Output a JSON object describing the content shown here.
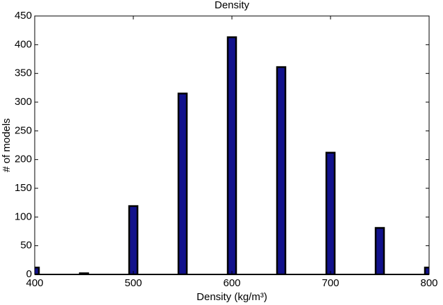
{
  "chart_data": {
    "type": "bar",
    "title": "Density",
    "xlabel": "Density (kg/m³)",
    "ylabel": "# of models",
    "x": [
      400,
      450,
      500,
      550,
      600,
      650,
      700,
      750,
      800
    ],
    "values": [
      12,
      2,
      119,
      315,
      413,
      361,
      212,
      81,
      12
    ],
    "color": "#12128c",
    "edgecolor": "#000000",
    "xlim": [
      400,
      800
    ],
    "xticks": [
      400,
      500,
      600,
      700,
      800
    ],
    "ylim": [
      0,
      450
    ],
    "yticks": [
      0,
      50,
      100,
      150,
      200,
      250,
      300,
      350,
      400,
      450
    ]
  }
}
